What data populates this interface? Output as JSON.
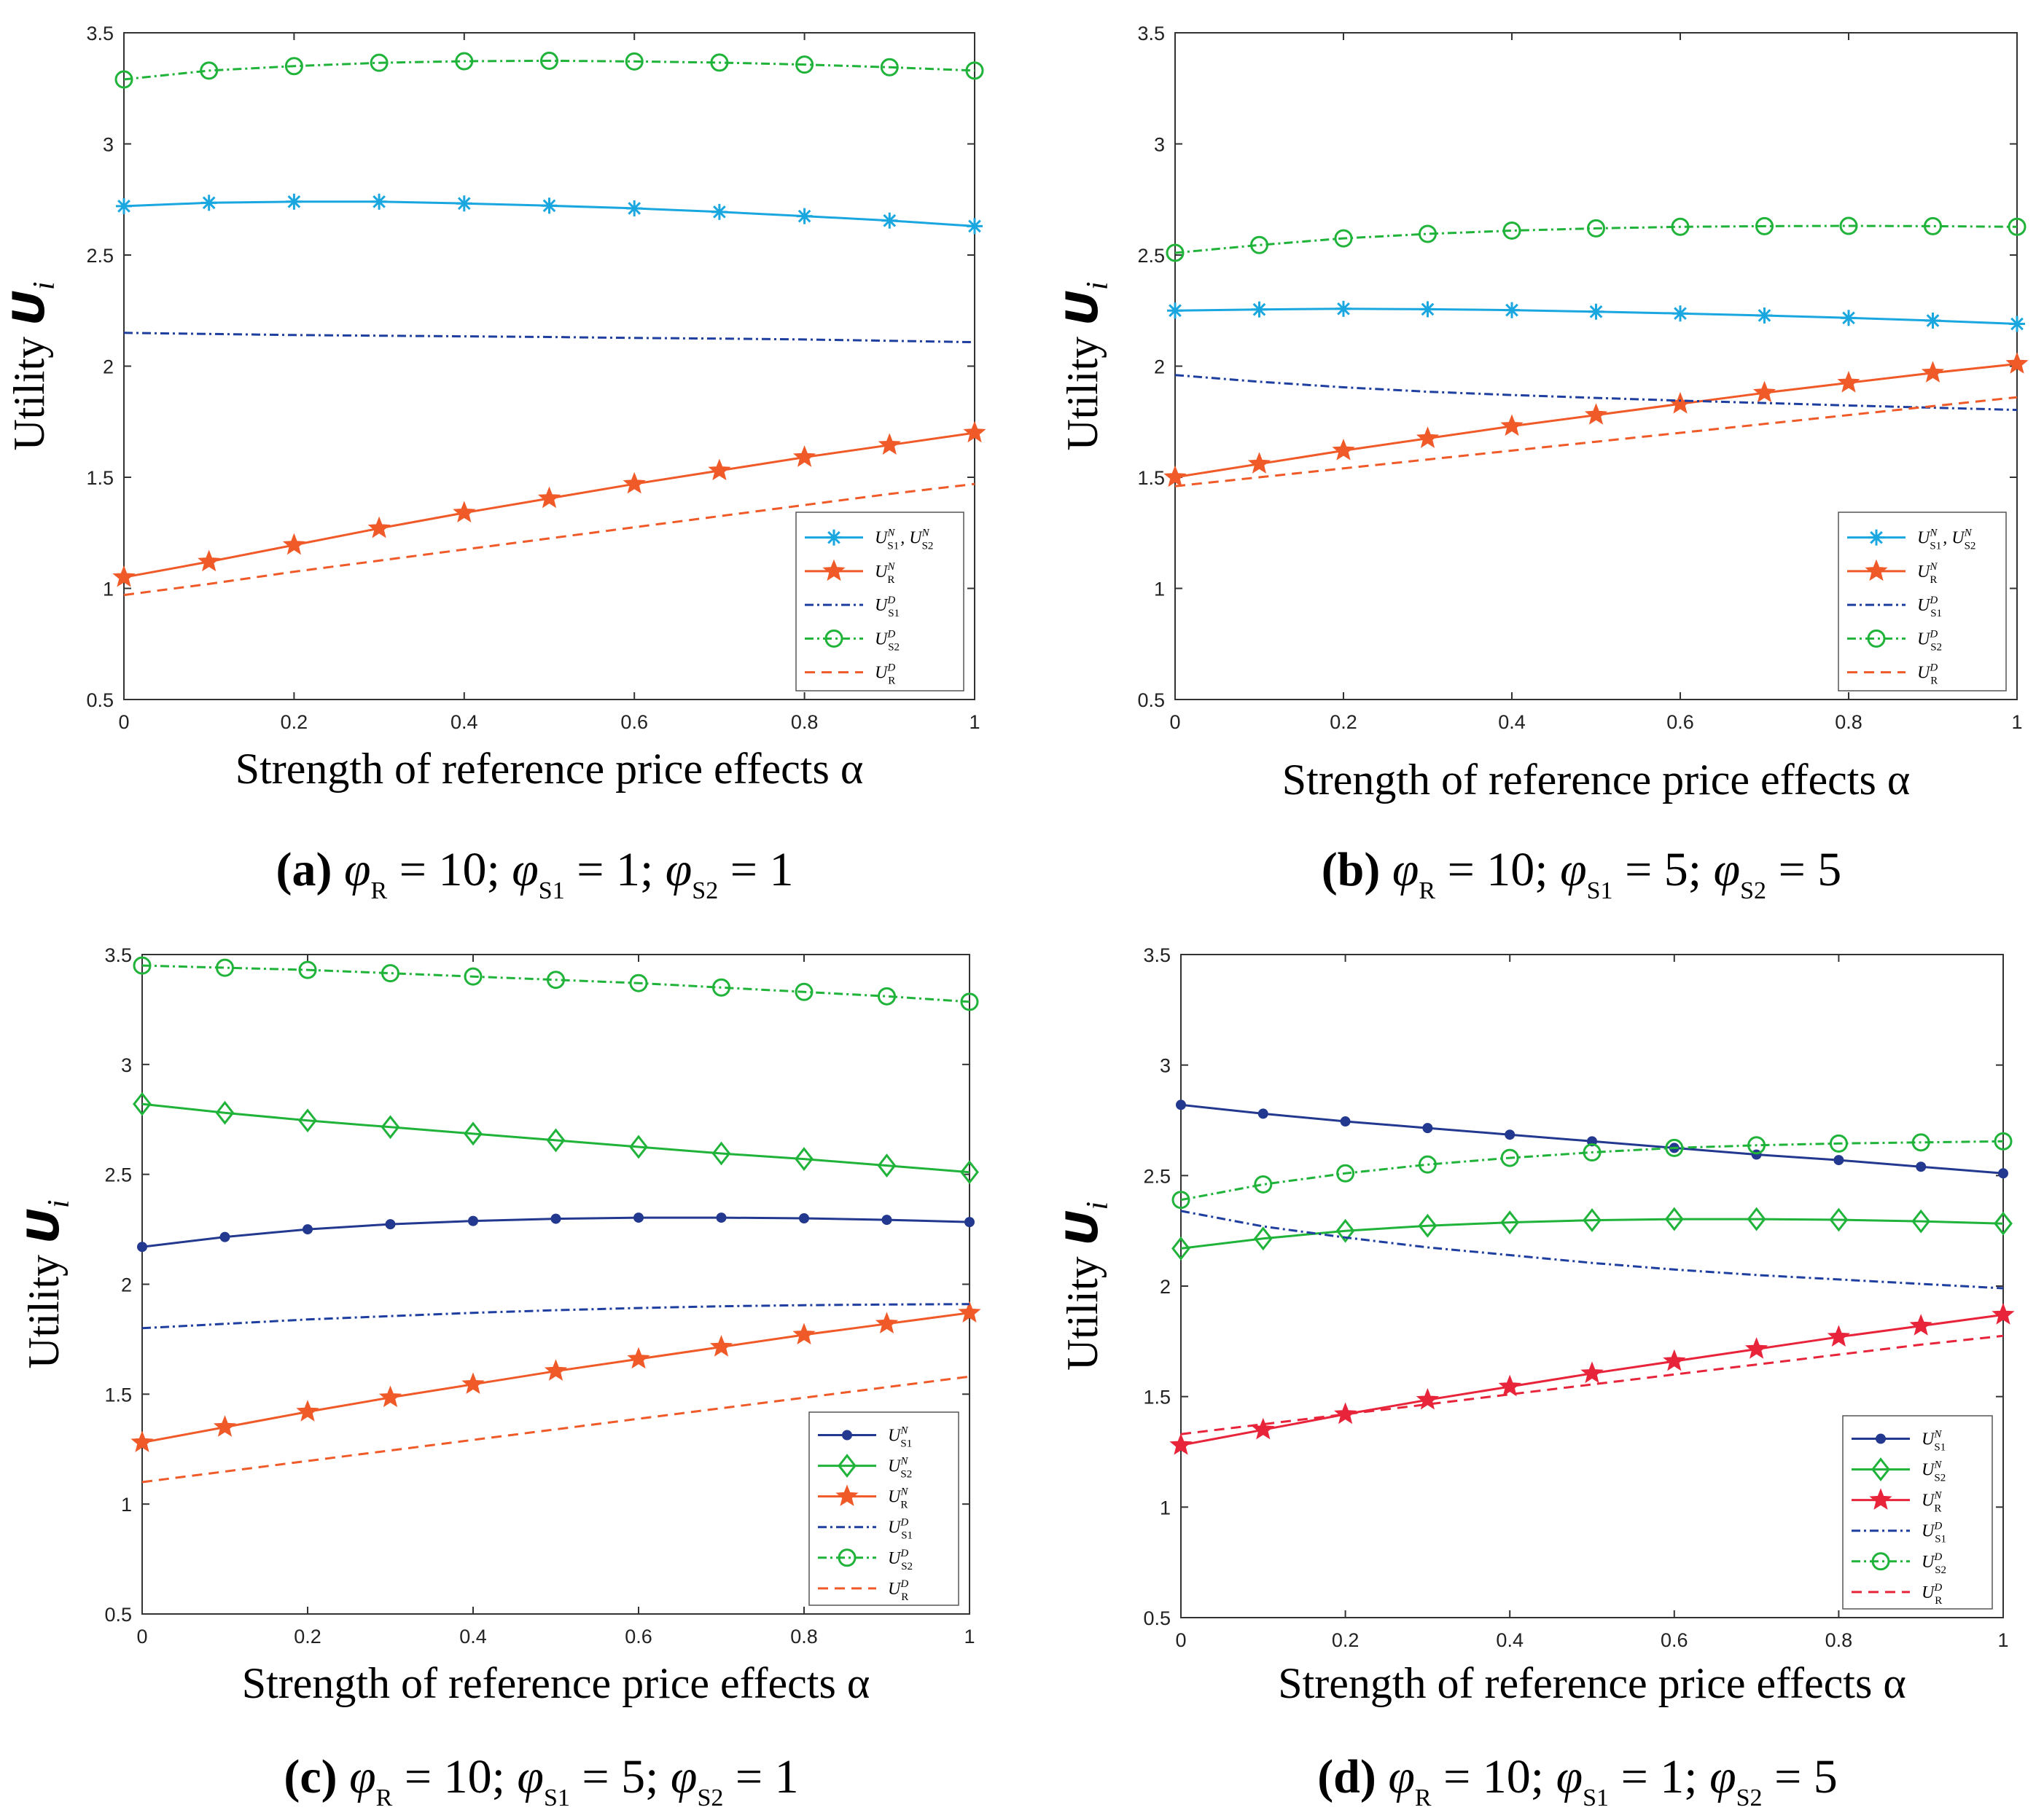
{
  "chart_data": [
    {
      "type": "line",
      "panel": "a",
      "caption": {
        "letter": "(a)",
        "params": "φR = 10;  φS1 = 1;  φS2 = 1"
      },
      "xlabel": "Strength of reference price effects α",
      "ylabel": "Utility U_i",
      "xlim": [
        0,
        1
      ],
      "ylim": [
        0.5,
        3.5
      ],
      "xticks": [
        "0",
        "0.2",
        "0.4",
        "0.6",
        "0.8",
        "1"
      ],
      "yticks": [
        "0.5",
        "1",
        "1.5",
        "2",
        "2.5",
        "3",
        "3.5"
      ],
      "legend_position": "bottom-right",
      "x": [
        0,
        0.1,
        0.2,
        0.3,
        0.4,
        0.5,
        0.6,
        0.7,
        0.8,
        0.9,
        1.0
      ],
      "series": [
        {
          "name": "U_S1^N, U_S2^N",
          "color": "#1aa7e0",
          "style": "solid",
          "marker": "asterisk",
          "values": [
            2.72,
            2.735,
            2.74,
            2.74,
            2.732,
            2.722,
            2.71,
            2.694,
            2.675,
            2.655,
            2.63
          ]
        },
        {
          "name": "U_R^N",
          "color": "#f05a28",
          "style": "solid",
          "marker": "star",
          "values": [
            1.05,
            1.12,
            1.195,
            1.27,
            1.34,
            1.405,
            1.47,
            1.53,
            1.59,
            1.645,
            1.7
          ]
        },
        {
          "name": "U_S1^D",
          "color": "#1f3fa0",
          "style": "dashdot",
          "marker": "none",
          "values": [
            2.15,
            2.145,
            2.14,
            2.137,
            2.134,
            2.131,
            2.127,
            2.124,
            2.12,
            2.114,
            2.108
          ]
        },
        {
          "name": "U_S2^D",
          "color": "#1fb33a",
          "style": "dashdot",
          "marker": "circle",
          "values": [
            3.29,
            3.33,
            3.35,
            3.365,
            3.372,
            3.374,
            3.371,
            3.366,
            3.357,
            3.345,
            3.33
          ]
        },
        {
          "name": "U_R^D",
          "color": "#f05a28",
          "style": "dashed",
          "marker": "none",
          "values": [
            0.97,
            1.02,
            1.075,
            1.125,
            1.175,
            1.225,
            1.275,
            1.325,
            1.375,
            1.425,
            1.47
          ]
        }
      ]
    },
    {
      "type": "line",
      "panel": "b",
      "caption": {
        "letter": "(b)",
        "params": "φR = 10;  φS1 = 5;  φS2 = 5"
      },
      "xlabel": "Strength of reference price effects α",
      "ylabel": "Utility U_i",
      "xlim": [
        0,
        1
      ],
      "ylim": [
        0.5,
        3.5
      ],
      "xticks": [
        "0",
        "0.2",
        "0.4",
        "0.6",
        "0.8",
        "1"
      ],
      "yticks": [
        "0.5",
        "1",
        "1.5",
        "2",
        "2.5",
        "3",
        "3.5"
      ],
      "legend_position": "bottom-right",
      "x": [
        0,
        0.1,
        0.2,
        0.3,
        0.4,
        0.5,
        0.6,
        0.7,
        0.8,
        0.9,
        1.0
      ],
      "series": [
        {
          "name": "U_S1^N, U_S2^N",
          "color": "#1aa7e0",
          "style": "solid",
          "marker": "asterisk",
          "values": [
            2.25,
            2.255,
            2.258,
            2.256,
            2.252,
            2.245,
            2.237,
            2.228,
            2.217,
            2.205,
            2.19
          ]
        },
        {
          "name": "U_R^N",
          "color": "#f05a28",
          "style": "solid",
          "marker": "star",
          "values": [
            1.5,
            1.56,
            1.62,
            1.675,
            1.73,
            1.78,
            1.83,
            1.88,
            1.925,
            1.97,
            2.01
          ]
        },
        {
          "name": "U_S1^D",
          "color": "#1f3fa0",
          "style": "dashdot",
          "marker": "none",
          "values": [
            1.96,
            1.93,
            1.905,
            1.885,
            1.87,
            1.857,
            1.845,
            1.834,
            1.823,
            1.813,
            1.803
          ]
        },
        {
          "name": "U_S2^D",
          "color": "#1fb33a",
          "style": "dashdot",
          "marker": "circle",
          "values": [
            2.51,
            2.545,
            2.575,
            2.595,
            2.61,
            2.62,
            2.627,
            2.63,
            2.631,
            2.63,
            2.627
          ]
        },
        {
          "name": "U_R^D",
          "color": "#f05a28",
          "style": "dashed",
          "marker": "none",
          "values": [
            1.46,
            1.5,
            1.54,
            1.58,
            1.62,
            1.66,
            1.7,
            1.74,
            1.78,
            1.82,
            1.86
          ]
        }
      ]
    },
    {
      "type": "line",
      "panel": "c",
      "caption": {
        "letter": "(c)",
        "params": "φR = 10;  φS1 = 5;  φS2 = 1"
      },
      "xlabel": "Strength of reference price effects α",
      "ylabel": "Utility U_i",
      "xlim": [
        0,
        1
      ],
      "ylim": [
        0.5,
        3.5
      ],
      "xticks": [
        "0",
        "0.2",
        "0.4",
        "0.6",
        "0.8",
        "1"
      ],
      "yticks": [
        "0.5",
        "1",
        "1.5",
        "2",
        "2.5",
        "3",
        "3.5"
      ],
      "legend_position": "bottom-right",
      "x": [
        0,
        0.1,
        0.2,
        0.3,
        0.4,
        0.5,
        0.6,
        0.7,
        0.8,
        0.9,
        1.0
      ],
      "series": [
        {
          "name": "U_S1^N",
          "color": "#23388f",
          "style": "solid",
          "marker": "dot",
          "values": [
            2.17,
            2.215,
            2.25,
            2.273,
            2.288,
            2.298,
            2.303,
            2.303,
            2.3,
            2.293,
            2.283
          ]
        },
        {
          "name": "U_S2^N",
          "color": "#1fb33a",
          "style": "solid",
          "marker": "diamond",
          "values": [
            2.82,
            2.78,
            2.745,
            2.715,
            2.685,
            2.655,
            2.625,
            2.595,
            2.57,
            2.54,
            2.51
          ]
        },
        {
          "name": "U_R^N",
          "color": "#f05a28",
          "style": "solid",
          "marker": "star",
          "values": [
            1.28,
            1.35,
            1.42,
            1.485,
            1.545,
            1.605,
            1.66,
            1.715,
            1.77,
            1.82,
            1.87
          ]
        },
        {
          "name": "U_S1^D",
          "color": "#1f3fa0",
          "style": "dashdot",
          "marker": "none",
          "values": [
            1.8,
            1.82,
            1.84,
            1.855,
            1.87,
            1.882,
            1.892,
            1.9,
            1.905,
            1.908,
            1.91
          ]
        },
        {
          "name": "U_S2^D",
          "color": "#1fb33a",
          "style": "dashdot",
          "marker": "circle",
          "values": [
            3.45,
            3.44,
            3.43,
            3.415,
            3.4,
            3.385,
            3.37,
            3.35,
            3.33,
            3.31,
            3.285
          ]
        },
        {
          "name": "U_R^D",
          "color": "#f05a28",
          "style": "dashed",
          "marker": "none",
          "values": [
            1.1,
            1.148,
            1.196,
            1.244,
            1.292,
            1.34,
            1.388,
            1.436,
            1.484,
            1.532,
            1.58
          ]
        }
      ]
    },
    {
      "type": "line",
      "panel": "d",
      "caption": {
        "letter": "(d)",
        "params": "φR = 10;  φS1 = 1;  φS2 = 5"
      },
      "xlabel": "Strength of reference price effects α",
      "ylabel": "Utility U_i",
      "xlim": [
        0,
        1
      ],
      "ylim": [
        0.5,
        3.5
      ],
      "xticks": [
        "0",
        "0.2",
        "0.4",
        "0.6",
        "0.8",
        "1"
      ],
      "yticks": [
        "0.5",
        "1",
        "1.5",
        "2",
        "2.5",
        "3",
        "3.5"
      ],
      "legend_position": "bottom-right",
      "x": [
        0,
        0.1,
        0.2,
        0.3,
        0.4,
        0.5,
        0.6,
        0.7,
        0.8,
        0.9,
        1.0
      ],
      "series": [
        {
          "name": "U_S1^N",
          "color": "#23388f",
          "style": "solid",
          "marker": "dot",
          "values": [
            2.82,
            2.78,
            2.745,
            2.715,
            2.685,
            2.655,
            2.625,
            2.595,
            2.57,
            2.54,
            2.51
          ]
        },
        {
          "name": "U_S2^N",
          "color": "#1fb33a",
          "style": "solid",
          "marker": "diamond",
          "values": [
            2.17,
            2.215,
            2.25,
            2.273,
            2.288,
            2.298,
            2.303,
            2.303,
            2.3,
            2.293,
            2.283
          ]
        },
        {
          "name": "U_R^N",
          "color": "#e8243a",
          "style": "solid",
          "marker": "star",
          "values": [
            1.28,
            1.35,
            1.42,
            1.485,
            1.545,
            1.605,
            1.66,
            1.715,
            1.77,
            1.82,
            1.87
          ]
        },
        {
          "name": "U_S1^D",
          "color": "#1f3fa0",
          "style": "dashdot",
          "marker": "none",
          "values": [
            2.34,
            2.27,
            2.22,
            2.175,
            2.14,
            2.105,
            2.075,
            2.05,
            2.03,
            2.01,
            1.99
          ]
        },
        {
          "name": "U_S2^D",
          "color": "#1fb33a",
          "style": "dashdot",
          "marker": "circle",
          "values": [
            2.39,
            2.46,
            2.51,
            2.55,
            2.58,
            2.605,
            2.625,
            2.637,
            2.645,
            2.65,
            2.655
          ]
        },
        {
          "name": "U_R^D",
          "color": "#e8243a",
          "style": "dashed",
          "marker": "none",
          "values": [
            1.33,
            1.375,
            1.42,
            1.465,
            1.51,
            1.555,
            1.6,
            1.645,
            1.69,
            1.735,
            1.775
          ]
        }
      ]
    }
  ]
}
